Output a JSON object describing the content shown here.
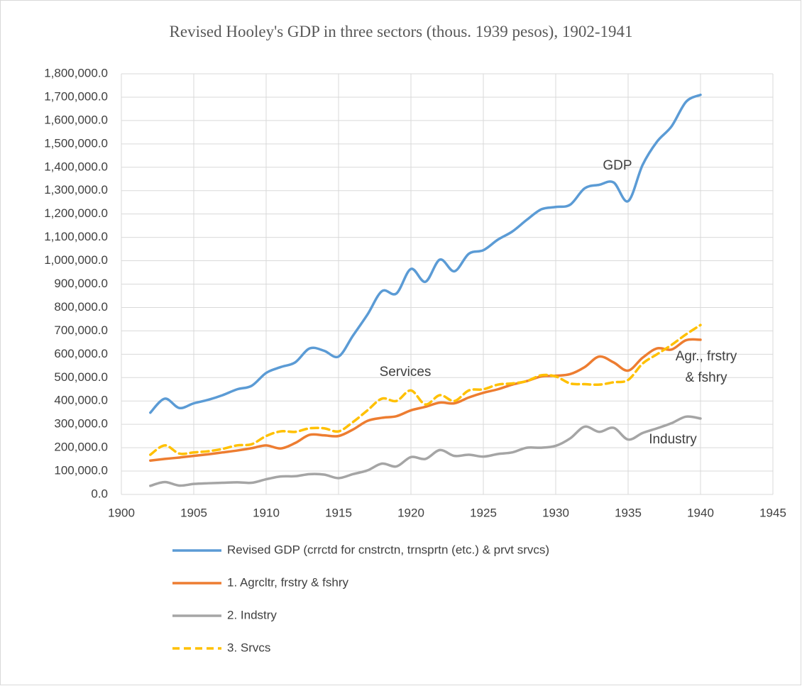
{
  "chart_data": {
    "type": "line",
    "title": "Revised Hooley's GDP in three sectors (thous. 1939 pesos), 1902-1941",
    "x": [
      1902,
      1903,
      1904,
      1905,
      1906,
      1907,
      1908,
      1909,
      1910,
      1911,
      1912,
      1913,
      1914,
      1915,
      1916,
      1917,
      1918,
      1919,
      1920,
      1921,
      1922,
      1923,
      1924,
      1925,
      1926,
      1927,
      1928,
      1929,
      1930,
      1931,
      1932,
      1933,
      1934,
      1935,
      1936,
      1937,
      1938,
      1939,
      1940
    ],
    "series": [
      {
        "name": "Revised GDP (crrctd for cnstrctn, trnsprtn (etc.) & prvt srvcs)",
        "color": "#5b9bd5",
        "dashed": false,
        "values": [
          350000,
          410000,
          370000,
          390000,
          405000,
          425000,
          450000,
          465000,
          520000,
          545000,
          565000,
          625000,
          615000,
          590000,
          680000,
          770000,
          870000,
          860000,
          965000,
          910000,
          1005000,
          955000,
          1030000,
          1045000,
          1090000,
          1125000,
          1175000,
          1220000,
          1230000,
          1240000,
          1310000,
          1325000,
          1335000,
          1255000,
          1410000,
          1510000,
          1575000,
          1680000,
          1710000
        ]
      },
      {
        "name": "1. Agrcltr, frstry & fshry",
        "color": "#ed7d31",
        "dashed": false,
        "values": [
          145000,
          152000,
          158000,
          165000,
          172000,
          180000,
          188000,
          198000,
          210000,
          197000,
          220000,
          255000,
          253000,
          250000,
          278000,
          315000,
          328000,
          335000,
          360000,
          375000,
          393000,
          390000,
          415000,
          435000,
          450000,
          470000,
          485000,
          505000,
          508000,
          515000,
          545000,
          590000,
          565000,
          530000,
          585000,
          625000,
          620000,
          660000,
          662000
        ]
      },
      {
        "name": "2. Indstry",
        "color": "#a5a5a5",
        "dashed": false,
        "values": [
          37000,
          53000,
          38000,
          45000,
          48000,
          50000,
          52000,
          50000,
          65000,
          77000,
          78000,
          87000,
          85000,
          70000,
          87000,
          103000,
          132000,
          120000,
          160000,
          152000,
          190000,
          165000,
          170000,
          162000,
          173000,
          180000,
          200000,
          200000,
          208000,
          240000,
          290000,
          268000,
          285000,
          235000,
          263000,
          283000,
          305000,
          333000,
          325000
        ]
      },
      {
        "name": "3. Srvcs",
        "color": "#ffc000",
        "dashed": true,
        "values": [
          170000,
          210000,
          175000,
          180000,
          185000,
          195000,
          210000,
          215000,
          250000,
          270000,
          268000,
          283000,
          283000,
          270000,
          310000,
          360000,
          410000,
          400000,
          445000,
          385000,
          425000,
          400000,
          445000,
          450000,
          470000,
          475000,
          485000,
          510000,
          505000,
          475000,
          472000,
          470000,
          480000,
          490000,
          560000,
          600000,
          640000,
          685000,
          725000
        ]
      }
    ],
    "annotations": [
      {
        "text": "GDP"
      },
      {
        "text": "Services"
      },
      {
        "text": "Agr., frstry & fshry"
      },
      {
        "text": "Industry"
      }
    ],
    "xlim": [
      1900,
      1945
    ],
    "xticks": [
      1900,
      1905,
      1910,
      1915,
      1920,
      1925,
      1930,
      1935,
      1940,
      1945
    ],
    "ylim": [
      0,
      1800000
    ],
    "yticks": [
      {
        "value": 0,
        "label": "0.0"
      },
      {
        "value": 100000,
        "label": "100,000.0"
      },
      {
        "value": 200000,
        "label": "200,000.0"
      },
      {
        "value": 300000,
        "label": "300,000.0"
      },
      {
        "value": 400000,
        "label": "400,000.0"
      },
      {
        "value": 500000,
        "label": "500,000.0"
      },
      {
        "value": 600000,
        "label": "600,000.0"
      },
      {
        "value": 700000,
        "label": "700,000.0"
      },
      {
        "value": 800000,
        "label": "800,000.0"
      },
      {
        "value": 900000,
        "label": "900,000.0"
      },
      {
        "value": 1000000,
        "label": "1,000,000.0"
      },
      {
        "value": 1100000,
        "label": "1,100,000.0"
      },
      {
        "value": 1200000,
        "label": "1,200,000.0"
      },
      {
        "value": 1300000,
        "label": "1,300,000.0"
      },
      {
        "value": 1400000,
        "label": "1,400,000.0"
      },
      {
        "value": 1500000,
        "label": "1,500,000.0"
      },
      {
        "value": 1600000,
        "label": "1,600,000.0"
      },
      {
        "value": 1700000,
        "label": "1,700,000.0"
      },
      {
        "value": 1800000,
        "label": "1,800,000.0"
      }
    ],
    "grid": true,
    "legend": "bottom"
  }
}
